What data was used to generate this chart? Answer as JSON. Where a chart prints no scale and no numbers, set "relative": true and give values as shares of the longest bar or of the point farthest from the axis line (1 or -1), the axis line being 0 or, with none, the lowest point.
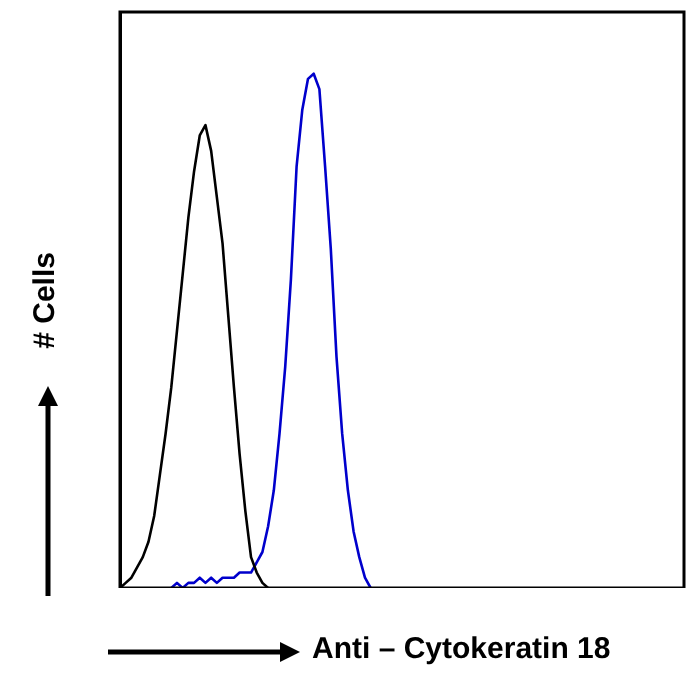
{
  "chart_data": {
    "type": "line",
    "relative": true,
    "xlabel": "Anti – Cytokeratin 18",
    "ylabel": "# Cells",
    "legend": false,
    "grid": false,
    "marker": "none",
    "categories": [
      null,
      null,
      null,
      null,
      null,
      null,
      null,
      null,
      null,
      null,
      null,
      null,
      null,
      null,
      null,
      null,
      null,
      null,
      null,
      null,
      null,
      null,
      null,
      null,
      null,
      null,
      null,
      null,
      null,
      null,
      null,
      null,
      null,
      null,
      null,
      null,
      null,
      null,
      null,
      null,
      null,
      null,
      null,
      null,
      null,
      null,
      null,
      null,
      null,
      null,
      null,
      null,
      null,
      null,
      null,
      null,
      null,
      null,
      null,
      null,
      null,
      null,
      null,
      null,
      null,
      null,
      null,
      null,
      null,
      null,
      null,
      null,
      null,
      null,
      null,
      null,
      null,
      null,
      null,
      null,
      null,
      null,
      null,
      null,
      null,
      null,
      null,
      null,
      null,
      null,
      null,
      null,
      null,
      null,
      null,
      null,
      null,
      null,
      null,
      null
    ],
    "series": [
      {
        "color": "#000000",
        "values": [
          0,
          0.01,
          0.02,
          0.04,
          0.06,
          0.09,
          0.14,
          0.22,
          0.3,
          0.39,
          0.5,
          0.61,
          0.72,
          0.81,
          0.88,
          0.9,
          0.85,
          0.76,
          0.67,
          0.53,
          0.39,
          0.26,
          0.15,
          0.06,
          0.03,
          0.01,
          0,
          null,
          null,
          null,
          null,
          null,
          null,
          null,
          null,
          null,
          null,
          null,
          null,
          null,
          null,
          null,
          null,
          null,
          null,
          null,
          null,
          null,
          null,
          null,
          null,
          null,
          null,
          null,
          null,
          null,
          null,
          null,
          null,
          null,
          null,
          null,
          null,
          null,
          null,
          null,
          null,
          null,
          null,
          null,
          null,
          null,
          null,
          null,
          null,
          null,
          null,
          null,
          null,
          null,
          null,
          null,
          null,
          null,
          null,
          null,
          null,
          null,
          null,
          null,
          null,
          null,
          null,
          null,
          null,
          null,
          null,
          null,
          null,
          null
        ]
      },
      {
        "color": "#0000cc",
        "values": [
          null,
          null,
          null,
          null,
          null,
          null,
          null,
          null,
          null,
          0,
          0.01,
          0,
          0.01,
          0.01,
          0.02,
          0.01,
          0.02,
          0.01,
          0.02,
          0.02,
          0.02,
          0.03,
          0.03,
          0.03,
          0.05,
          0.07,
          0.12,
          0.19,
          0.3,
          0.43,
          0.6,
          0.82,
          0.93,
          0.99,
          1.0,
          0.97,
          0.82,
          0.66,
          0.45,
          0.3,
          0.19,
          0.11,
          0.06,
          0.02,
          0,
          null,
          null,
          null,
          null,
          null,
          null,
          null,
          null,
          null,
          null,
          null,
          null,
          null,
          null,
          null,
          null,
          null,
          null,
          null,
          null,
          null,
          null,
          null,
          null,
          null,
          null,
          null,
          null,
          null,
          null,
          null,
          null,
          null,
          null,
          null,
          null,
          null,
          null,
          null,
          null,
          null,
          null,
          null,
          null,
          null,
          null,
          null,
          null,
          null,
          null,
          null,
          null,
          null,
          null,
          null
        ]
      }
    ]
  }
}
